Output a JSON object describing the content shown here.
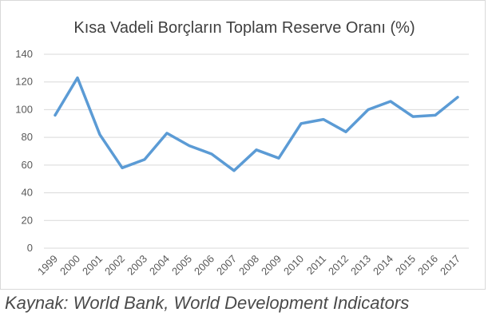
{
  "chart_data": {
    "type": "line",
    "title": "Kısa Vadeli Borçların Toplam Reserve Oranı (%)",
    "xlabel": "",
    "ylabel": "",
    "categories": [
      "1999",
      "2000",
      "2001",
      "2002",
      "2003",
      "2004",
      "2005",
      "2006",
      "2007",
      "2008",
      "2009",
      "2010",
      "2011",
      "2012",
      "2013",
      "2014",
      "2015",
      "2016",
      "2017"
    ],
    "series": [
      {
        "values": [
          96,
          123,
          82,
          58,
          64,
          83,
          74,
          68,
          56,
          71,
          65,
          90,
          93,
          84,
          100,
          106,
          95,
          96,
          109
        ],
        "color": "#5b9bd5"
      }
    ],
    "ylim": [
      0,
      140
    ],
    "yticks": [
      0,
      20,
      40,
      60,
      80,
      100,
      120,
      140
    ],
    "grid": true,
    "legend": "none"
  },
  "source": "Kaynak: World Bank, World Development Indicators"
}
